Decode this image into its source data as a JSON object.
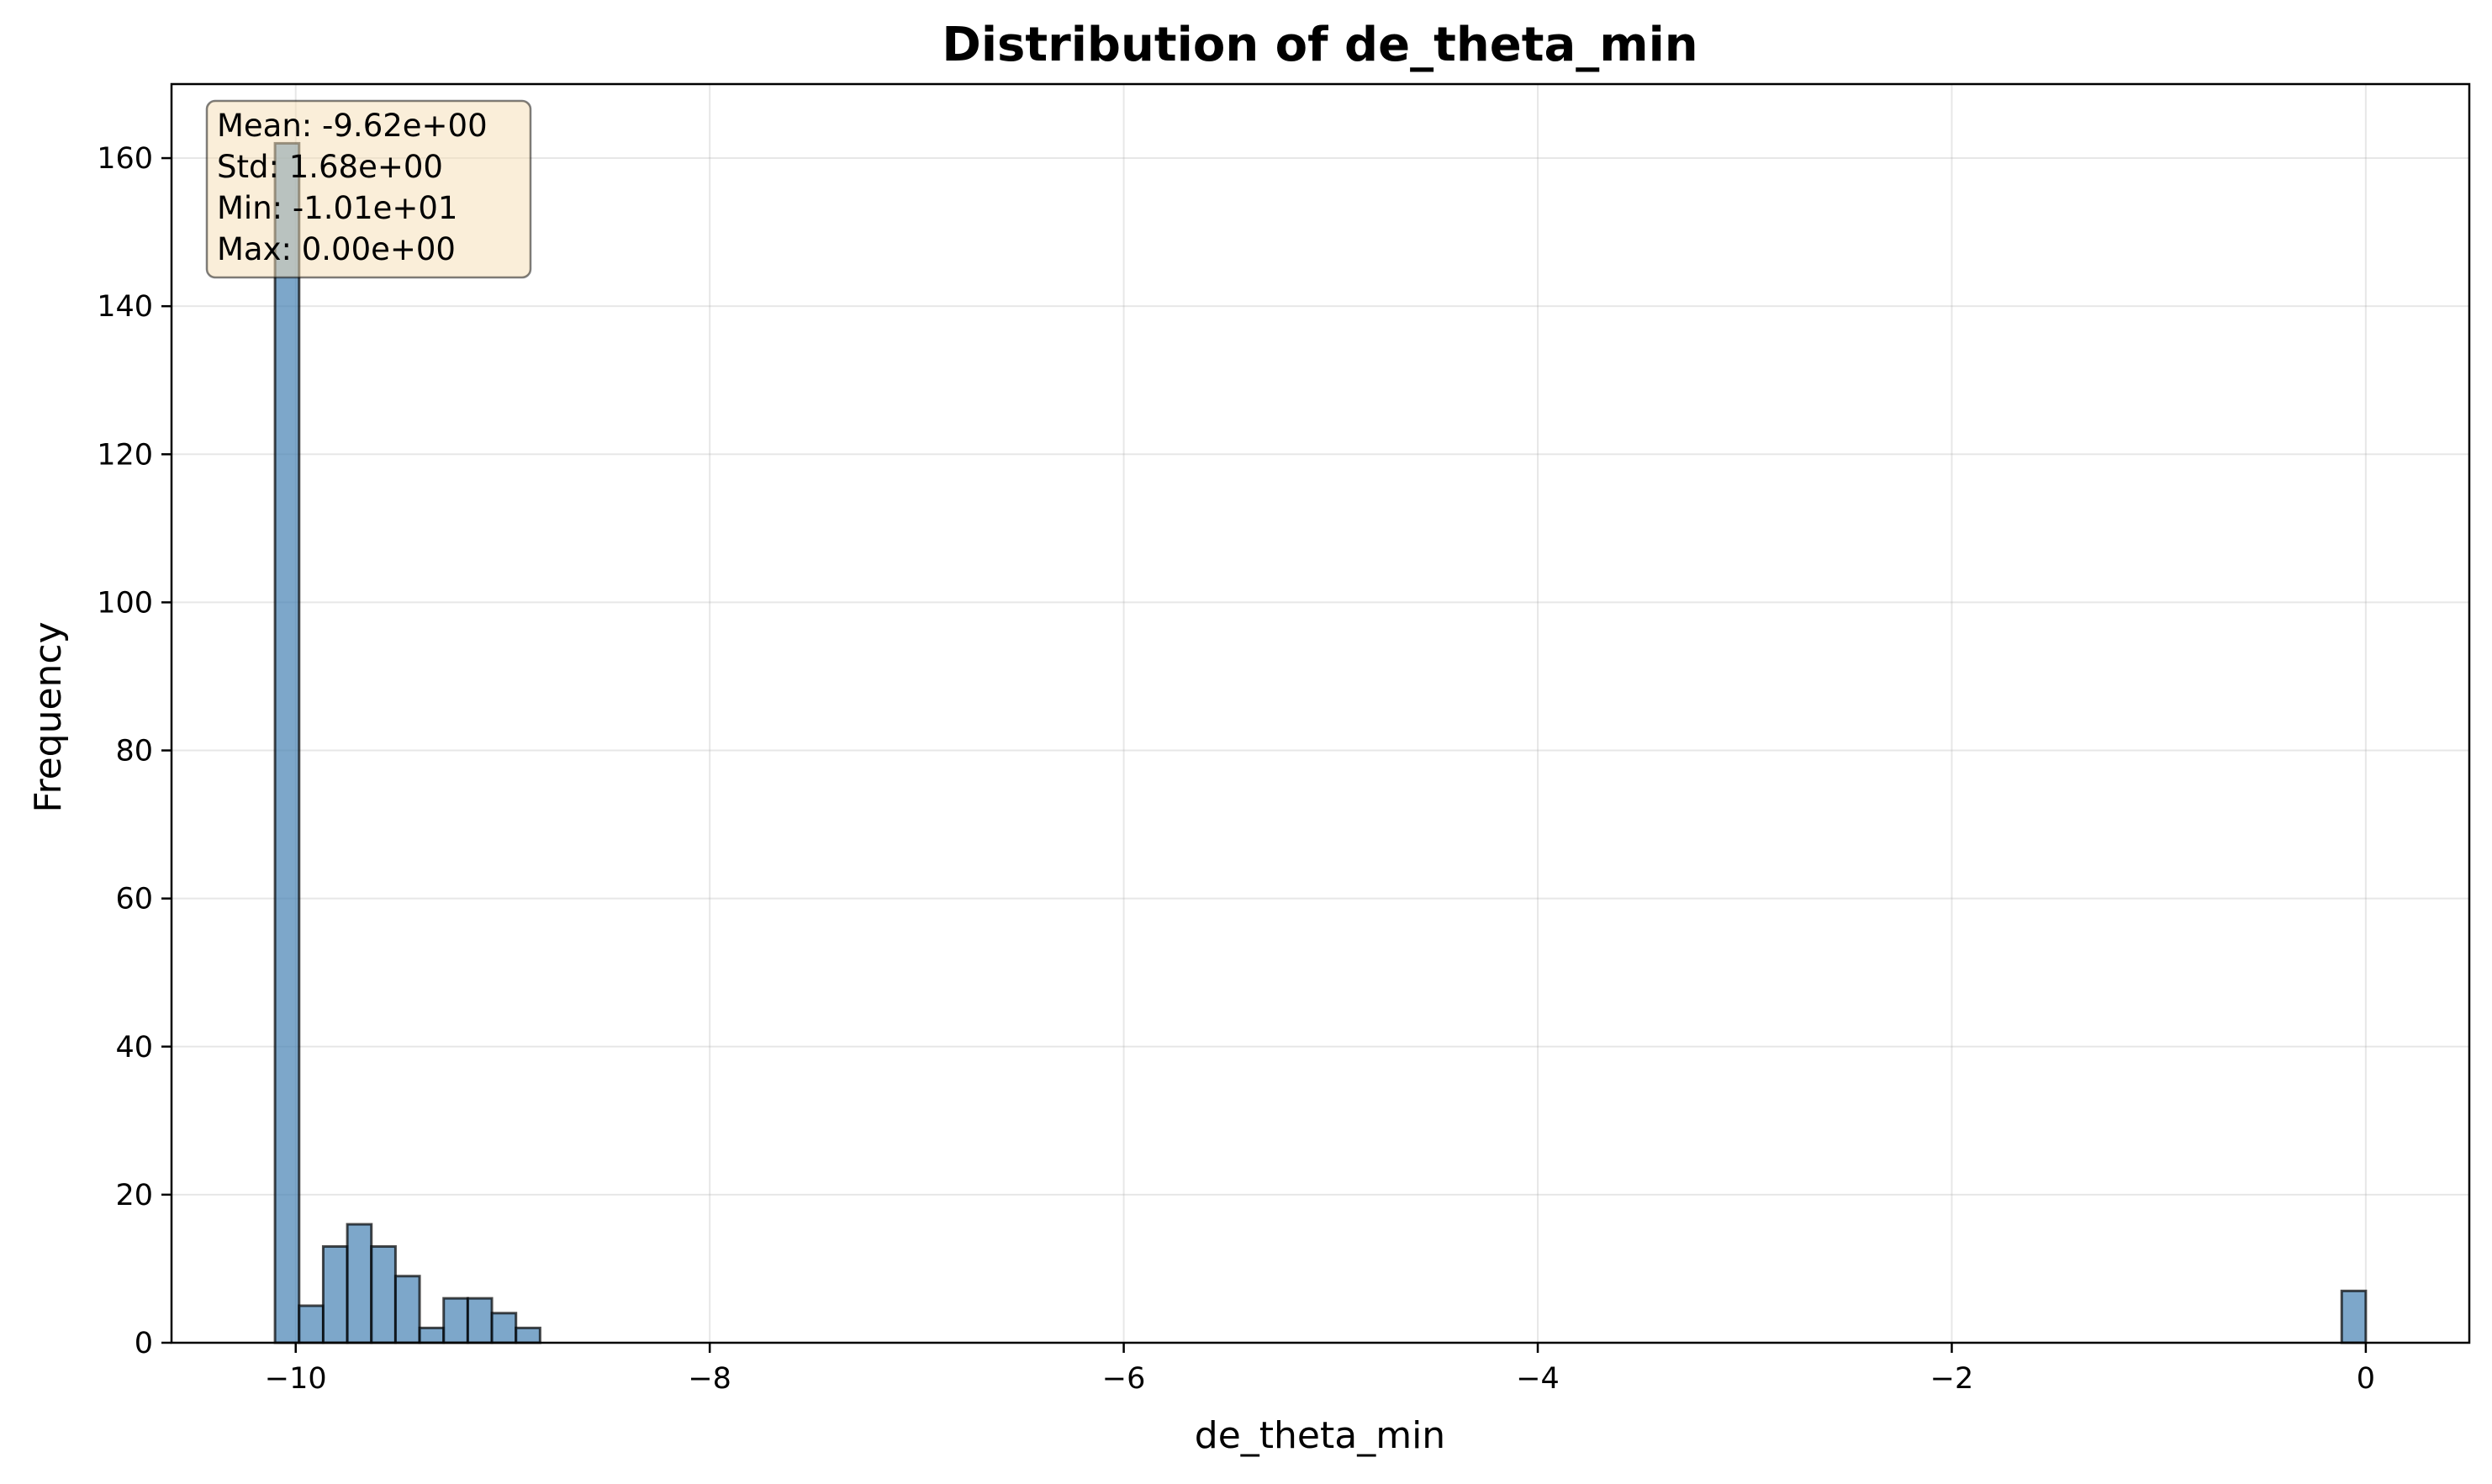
{
  "chart_data": {
    "type": "bar",
    "title": "Distribution of de_theta_min",
    "xlabel": "de_theta_min",
    "ylabel": "Frequency",
    "xlim": [
      -10.6,
      0.5
    ],
    "ylim": [
      0,
      170
    ],
    "x_ticks": [
      -10,
      -8,
      -6,
      -4,
      -2,
      0
    ],
    "x_tick_labels": [
      "−10",
      "−8",
      "−6",
      "−4",
      "−2",
      "0"
    ],
    "y_ticks": [
      0,
      20,
      40,
      60,
      80,
      100,
      120,
      140,
      160
    ],
    "y_tick_labels": [
      "0",
      "20",
      "40",
      "60",
      "80",
      "100",
      "120",
      "140",
      "160"
    ],
    "grid": true,
    "bin_width": 0.1164,
    "bins": [
      {
        "start": -10.1,
        "count": 162
      },
      {
        "start": -9.9836,
        "count": 5
      },
      {
        "start": -9.8672,
        "count": 13
      },
      {
        "start": -9.7508,
        "count": 16
      },
      {
        "start": -9.6344,
        "count": 13
      },
      {
        "start": -9.518,
        "count": 9
      },
      {
        "start": -9.4016,
        "count": 2
      },
      {
        "start": -9.2852,
        "count": 6
      },
      {
        "start": -9.1688,
        "count": 6
      },
      {
        "start": -9.0524,
        "count": 4
      },
      {
        "start": -8.936,
        "count": 2
      },
      {
        "start": -0.1164,
        "count": 7
      }
    ],
    "stats_box": [
      "Mean: -9.62e+00",
      "Std: 1.68e+00",
      "Min: -1.01e+01",
      "Max: 0.00e+00"
    ],
    "colors": {
      "bar_fill": "#4682b4",
      "bar_opacity": 0.7,
      "bar_edge": "#000000",
      "stats_box_fill": "#f5deb3",
      "stats_box_opacity": 0.5
    }
  }
}
